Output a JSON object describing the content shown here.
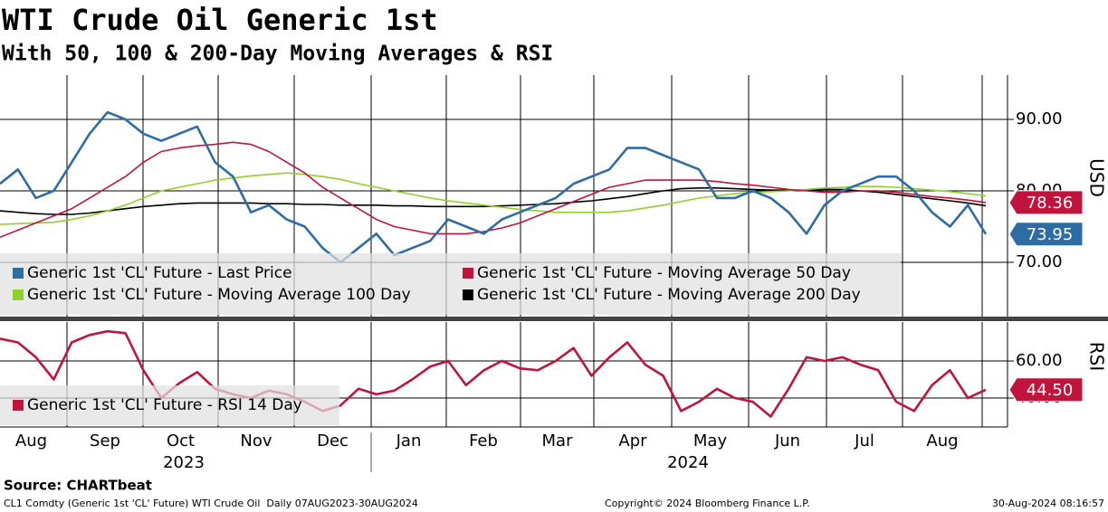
{
  "title": "WTI Crude Oil Generic 1st",
  "subtitle": "With 50, 100 & 200-Day Moving Averages & RSI",
  "chart_data": [
    {
      "type": "line",
      "ylabel": "USD",
      "ylim": [
        62.4,
        96.2
      ],
      "yticks": [
        {
          "value": 70,
          "label": "70.00"
        },
        {
          "value": 80,
          "label": "80.00"
        },
        {
          "value": 90,
          "label": "90.00"
        }
      ],
      "grid": true,
      "series": [
        {
          "name": "Generic 1st 'CL' Future - Last Price",
          "color": "#2e6ca4",
          "last_value_tag": true,
          "values": [
            81,
            83,
            79,
            80,
            84,
            88,
            91,
            90,
            88,
            87,
            88,
            89,
            84,
            82,
            77,
            78,
            76,
            75,
            72,
            70,
            72,
            74,
            71,
            72,
            73,
            76,
            75,
            74,
            76,
            77,
            78,
            79,
            81,
            82,
            83,
            86,
            86,
            85,
            84,
            83,
            79,
            79,
            80,
            79,
            77,
            74,
            78,
            80,
            81,
            82,
            82,
            80,
            77,
            75,
            78,
            73.95
          ]
        },
        {
          "name": "Generic 1st 'CL' Future - Moving Average 50 Day",
          "color": "#c0143c",
          "last_value_tag": true,
          "values": [
            73.5,
            74.5,
            75.5,
            76.5,
            77.5,
            79,
            80.5,
            82,
            84,
            85.5,
            86,
            86.3,
            86.5,
            86.8,
            86.5,
            85.5,
            84,
            82.5,
            80.5,
            79,
            77.5,
            76,
            75,
            74.5,
            74,
            74,
            74,
            74.3,
            74.8,
            75.5,
            76.5,
            77.5,
            78.5,
            79.5,
            80.5,
            81,
            81.5,
            81.5,
            81.5,
            81.5,
            81.3,
            81,
            80.8,
            80.5,
            80.2,
            80,
            79.8,
            79.8,
            80,
            80,
            79.8,
            79.5,
            79.2,
            79,
            78.7,
            78.36
          ]
        },
        {
          "name": "Generic 1st 'CL' Future - Moving Average 100 Day",
          "color": "#8fd12a",
          "last_value_tag": false,
          "values": [
            75.3,
            75.4,
            75.5,
            75.6,
            76,
            76.5,
            77.2,
            78,
            79,
            80,
            80.5,
            81,
            81.5,
            81.8,
            82.1,
            82.3,
            82.5,
            82.3,
            82,
            81.6,
            81,
            80.5,
            80,
            79.5,
            79,
            78.6,
            78.3,
            78,
            77.7,
            77.4,
            77.2,
            77,
            77,
            77,
            77,
            77.2,
            77.6,
            78,
            78.5,
            79,
            79.3,
            79.6,
            79.8,
            79.9,
            80,
            80.2,
            80.4,
            80.5,
            80.6,
            80.6,
            80.5,
            80.3,
            80.1,
            79.9,
            79.6,
            79.3
          ]
        },
        {
          "name": "Generic 1st 'CL' Future - Moving Average 200 Day",
          "color": "#000000",
          "last_value_tag": false,
          "values": [
            77.2,
            77,
            76.8,
            76.7,
            76.7,
            76.9,
            77.2,
            77.5,
            77.8,
            78,
            78.2,
            78.3,
            78.3,
            78.3,
            78.3,
            78.2,
            78.2,
            78.1,
            78.1,
            78,
            78,
            78,
            77.9,
            77.9,
            77.8,
            77.8,
            77.8,
            77.8,
            77.9,
            78,
            78.1,
            78.2,
            78.4,
            78.6,
            78.9,
            79.2,
            79.6,
            80,
            80.3,
            80.4,
            80.4,
            80.3,
            80.2,
            80.1,
            80.1,
            80.1,
            80.2,
            80.2,
            80,
            79.8,
            79.5,
            79.2,
            78.9,
            78.6,
            78.3,
            77.9
          ]
        }
      ]
    },
    {
      "type": "line",
      "ylabel": "RSI",
      "ylim": [
        24.4,
        81
      ],
      "yticks": [
        {
          "value": 40,
          "label": "40.00"
        },
        {
          "value": 60,
          "label": "60.00"
        }
      ],
      "grid": true,
      "series": [
        {
          "name": "Generic 1st 'CL' Future - RSI 14 Day",
          "color": "#c0143c",
          "last_value_tag": true,
          "values": [
            72,
            70,
            62,
            50,
            70,
            74,
            76,
            75,
            55,
            40,
            48,
            54,
            45,
            42,
            40,
            44,
            42,
            38,
            33,
            36,
            45,
            42,
            44,
            50,
            57,
            60,
            47,
            55,
            60,
            56,
            55,
            60,
            67,
            52,
            62,
            70,
            58,
            52,
            33,
            38,
            45,
            40,
            38,
            30,
            45,
            62,
            60,
            62,
            58,
            55,
            38,
            33,
            47,
            55,
            40,
            44.5
          ],
          "value_labels": [
            null,
            null,
            null,
            null,
            null,
            null,
            null,
            null,
            null,
            null,
            null,
            null,
            null,
            null,
            null,
            null,
            null,
            null,
            null,
            null,
            null,
            null,
            null,
            null,
            null,
            null,
            null,
            null,
            null,
            null,
            null,
            null,
            null,
            null,
            null,
            null,
            null,
            null,
            null,
            null,
            null,
            null,
            null,
            null,
            null,
            null,
            null,
            null,
            null,
            null,
            null,
            null,
            null,
            null,
            null,
            "44.50"
          ]
        }
      ]
    }
  ],
  "x_axis": {
    "categories": [
      "Aug",
      "Sep",
      "Oct",
      "Nov",
      "Dec",
      "Jan",
      "Feb",
      "Mar",
      "Apr",
      "May",
      "Jun",
      "Jul",
      "Aug"
    ],
    "years": [
      "2023",
      "2024"
    ]
  },
  "source": "Source: CHARTbeat",
  "footer_left": "CL1 Comdty (Generic 1st 'CL' Future) WTI Crude Oil  Daily 07AUG2023-30AUG2024",
  "footer_center": "Copyright© 2024 Bloomberg Finance L.P.",
  "footer_right": "30-Aug-2024 08:16:57"
}
